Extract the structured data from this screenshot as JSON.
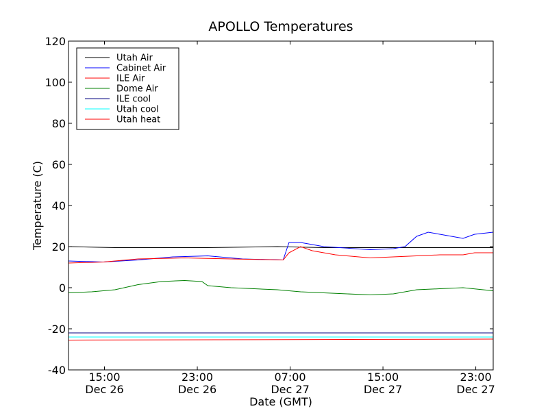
{
  "chart_data": {
    "type": "line",
    "title": "APOLLO Temperatures",
    "xlabel": "Date (GMT)",
    "ylabel": "Temperature (C)",
    "ylim": [
      -40,
      120
    ],
    "xlim_hours": [
      0,
      36.6
    ],
    "y_ticks": [
      {
        "value": 120,
        "label": "120"
      },
      {
        "value": 100,
        "label": "100"
      },
      {
        "value": 80,
        "label": "80"
      },
      {
        "value": 60,
        "label": "60"
      },
      {
        "value": 40,
        "label": "40"
      },
      {
        "value": 20,
        "label": "20"
      },
      {
        "value": 0,
        "label": "0"
      },
      {
        "value": -20,
        "label": "-20"
      },
      {
        "value": -40,
        "label": "-40"
      }
    ],
    "x_ticks": [
      {
        "hours": 3.1,
        "time": "15:00",
        "date": "Dec 26"
      },
      {
        "hours": 11.1,
        "time": "23:00",
        "date": "Dec 26"
      },
      {
        "hours": 19.1,
        "time": "07:00",
        "date": "Dec 27"
      },
      {
        "hours": 27.1,
        "time": "15:00",
        "date": "Dec 27"
      },
      {
        "hours": 35.1,
        "time": "23:00",
        "date": "Dec 27"
      }
    ],
    "legend_position": "top-left",
    "series": [
      {
        "name": "Utah Air",
        "color": "#000000",
        "points": [
          [
            0,
            20
          ],
          [
            4,
            19.5
          ],
          [
            8,
            19.5
          ],
          [
            12,
            19.5
          ],
          [
            18,
            20
          ],
          [
            22,
            19.5
          ],
          [
            26,
            19.5
          ],
          [
            30,
            19.5
          ],
          [
            36.6,
            19.5
          ]
        ]
      },
      {
        "name": "Cabinet Air",
        "color": "#0000ff",
        "points": [
          [
            0,
            13
          ],
          [
            3,
            12.5
          ],
          [
            6,
            13.5
          ],
          [
            9,
            15
          ],
          [
            12,
            15.5
          ],
          [
            15,
            14
          ],
          [
            18.5,
            13.5
          ],
          [
            19,
            22
          ],
          [
            20,
            22
          ],
          [
            22,
            20
          ],
          [
            26,
            18.5
          ],
          [
            28,
            19
          ],
          [
            29,
            20
          ],
          [
            30,
            25
          ],
          [
            31,
            27
          ],
          [
            32,
            26
          ],
          [
            34,
            24
          ],
          [
            35,
            26
          ],
          [
            36.6,
            27
          ]
        ]
      },
      {
        "name": "ILE Air",
        "color": "#ff0000",
        "points": [
          [
            0,
            12
          ],
          [
            3,
            12.5
          ],
          [
            6,
            14
          ],
          [
            10,
            14.5
          ],
          [
            14,
            14
          ],
          [
            18.5,
            13.5
          ],
          [
            19,
            17
          ],
          [
            20,
            20
          ],
          [
            21,
            18
          ],
          [
            23,
            16
          ],
          [
            26,
            14.5
          ],
          [
            28,
            15
          ],
          [
            30,
            15.5
          ],
          [
            32,
            16
          ],
          [
            34,
            16
          ],
          [
            35,
            17
          ],
          [
            36.6,
            17
          ]
        ]
      },
      {
        "name": "Dome Air",
        "color": "#008000",
        "points": [
          [
            0,
            -2.5
          ],
          [
            2,
            -2
          ],
          [
            4,
            -1
          ],
          [
            6,
            1.5
          ],
          [
            8,
            3
          ],
          [
            10,
            3.5
          ],
          [
            11.5,
            3
          ],
          [
            12,
            1
          ],
          [
            14,
            0
          ],
          [
            18,
            -1
          ],
          [
            20,
            -2
          ],
          [
            24,
            -3
          ],
          [
            26,
            -3.5
          ],
          [
            28,
            -3
          ],
          [
            30,
            -1
          ],
          [
            32,
            -0.5
          ],
          [
            34,
            0
          ],
          [
            36.6,
            -1.5
          ]
        ]
      },
      {
        "name": "ILE cool",
        "color": "#000080",
        "points": [
          [
            0,
            -22
          ],
          [
            36.6,
            -22
          ]
        ]
      },
      {
        "name": "Utah cool",
        "color": "#00ffff",
        "points": [
          [
            0,
            -24
          ],
          [
            36.6,
            -24
          ]
        ]
      },
      {
        "name": "Utah heat",
        "color": "#ff0000",
        "points": [
          [
            0,
            -25.5
          ],
          [
            36.6,
            -25
          ]
        ]
      }
    ]
  }
}
